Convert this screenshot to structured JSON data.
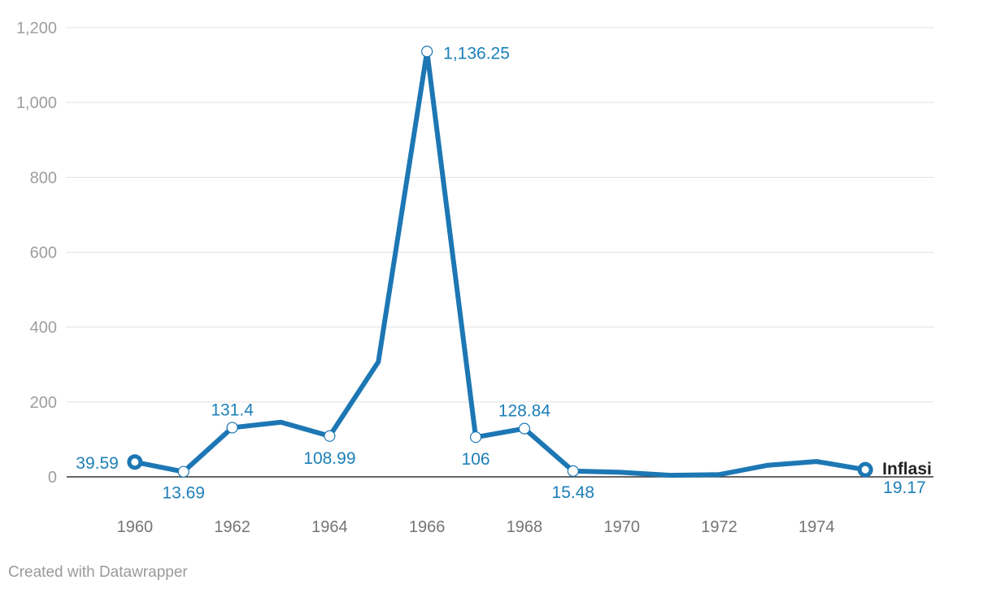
{
  "chart_data": {
    "type": "line",
    "x": [
      1960,
      1961,
      1962,
      1963,
      1964,
      1965,
      1966,
      1967,
      1968,
      1969,
      1970,
      1971,
      1972,
      1973,
      1974,
      1975
    ],
    "series": [
      {
        "name": "Inflasi",
        "values": [
          39.59,
          13.69,
          131.4,
          146,
          108.99,
          307,
          1136.25,
          106,
          128.84,
          15.48,
          12,
          4,
          6,
          31,
          41,
          19.17
        ],
        "color": "#1d77b4"
      }
    ],
    "data_labels": [
      {
        "index": 0,
        "text": "39.59"
      },
      {
        "index": 1,
        "text": "13.69"
      },
      {
        "index": 2,
        "text": "131.4"
      },
      {
        "index": 4,
        "text": "108.99"
      },
      {
        "index": 6,
        "text": "1,136.25"
      },
      {
        "index": 7,
        "text": "106"
      },
      {
        "index": 8,
        "text": "128.84"
      },
      {
        "index": 9,
        "text": "15.48"
      },
      {
        "index": 15,
        "text": "19.17"
      }
    ],
    "yticks": [
      0,
      200,
      400,
      600,
      800,
      1000,
      1200
    ],
    "ytick_labels": [
      "0",
      "200",
      "400",
      "600",
      "800",
      "1,000",
      "1,200"
    ],
    "xticks": [
      1960,
      1962,
      1964,
      1966,
      1968,
      1970,
      1972,
      1974
    ],
    "xtick_labels": [
      "1960",
      "1962",
      "1964",
      "1966",
      "1968",
      "1970",
      "1972",
      "1974"
    ],
    "ylim": [
      0,
      1200
    ],
    "xlim": [
      1958.6,
      1976.4
    ],
    "grid": true,
    "title": "",
    "xlabel": "",
    "ylabel": ""
  },
  "footer": {
    "credit": "Created with Datawrapper"
  }
}
